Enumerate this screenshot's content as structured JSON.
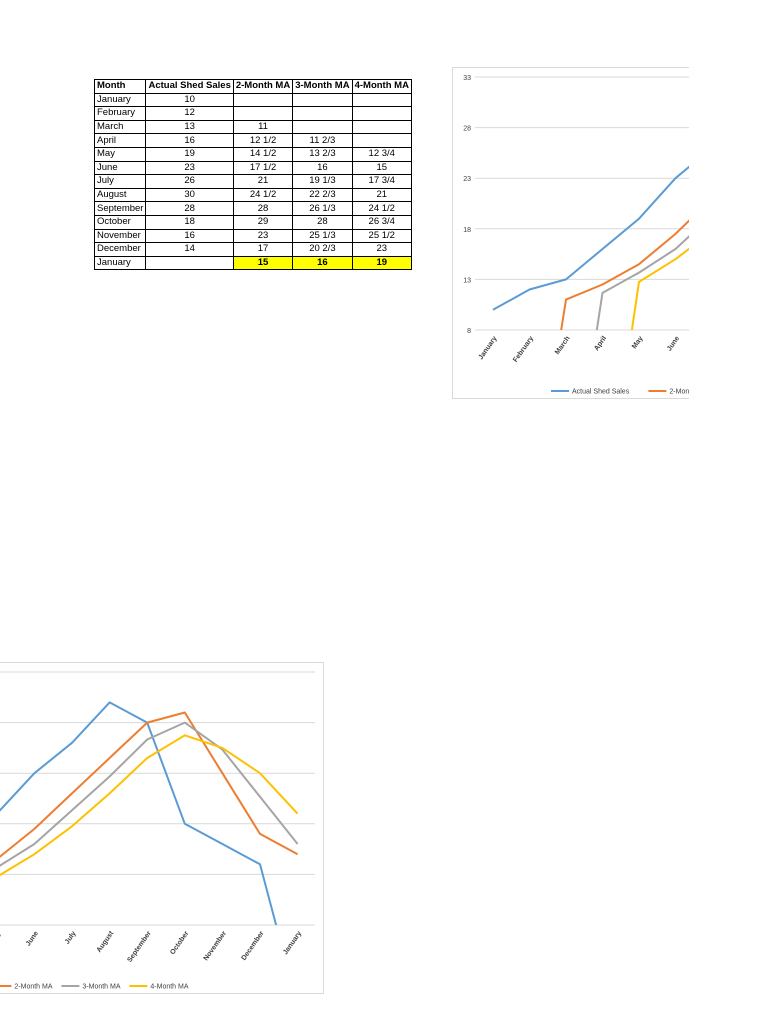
{
  "table": {
    "headers": [
      "Month",
      "Actual Shed Sales",
      "2-Month MA",
      "3-Month MA",
      "4-Month MA"
    ],
    "rows": [
      {
        "month": "January",
        "actual": "10",
        "ma2": "",
        "ma3": "",
        "ma4": ""
      },
      {
        "month": "February",
        "actual": "12",
        "ma2": "",
        "ma3": "",
        "ma4": ""
      },
      {
        "month": "March",
        "actual": "13",
        "ma2": "11",
        "ma3": "",
        "ma4": ""
      },
      {
        "month": "April",
        "actual": "16",
        "ma2": "12 1/2",
        "ma3": "11 2/3",
        "ma4": ""
      },
      {
        "month": "May",
        "actual": "19",
        "ma2": "14 1/2",
        "ma3": "13 2/3",
        "ma4": "12 3/4"
      },
      {
        "month": "June",
        "actual": "23",
        "ma2": "17 1/2",
        "ma3": "16",
        "ma4": "15"
      },
      {
        "month": "July",
        "actual": "26",
        "ma2": "21",
        "ma3": "19 1/3",
        "ma4": "17 3/4"
      },
      {
        "month": "August",
        "actual": "30",
        "ma2": "24 1/2",
        "ma3": "22 2/3",
        "ma4": "21"
      },
      {
        "month": "September",
        "actual": "28",
        "ma2": "28",
        "ma3": "26 1/3",
        "ma4": "24 1/2"
      },
      {
        "month": "October",
        "actual": "18",
        "ma2": "29",
        "ma3": "28",
        "ma4": "26 3/4"
      },
      {
        "month": "November",
        "actual": "16",
        "ma2": "23",
        "ma3": "25 1/3",
        "ma4": "25 1/2"
      },
      {
        "month": "December",
        "actual": "14",
        "ma2": "17",
        "ma3": "20 2/3",
        "ma4": "23"
      }
    ],
    "forecast_row": {
      "month": "January",
      "actual": "",
      "ma2": "15",
      "ma3": "16",
      "ma4": "19"
    },
    "highlight_color": "#ffff00"
  },
  "chart_data": {
    "type": "line",
    "x": [
      "January",
      "February",
      "March",
      "April",
      "May",
      "June",
      "July",
      "August",
      "September",
      "October",
      "November",
      "December",
      "January"
    ],
    "series": [
      {
        "name": "Actual Shed Sales",
        "color": "#5b9bd5",
        "values": [
          10,
          12,
          13,
          16,
          19,
          23,
          26,
          30,
          28,
          18,
          16,
          14,
          null
        ]
      },
      {
        "name": "2-Month MA",
        "color": "#ed7d31",
        "values": [
          null,
          null,
          11,
          12.5,
          14.5,
          17.5,
          21,
          24.5,
          28,
          29,
          23,
          17,
          15
        ]
      },
      {
        "name": "3-Month MA",
        "color": "#a5a5a5",
        "values": [
          null,
          null,
          null,
          11.67,
          13.67,
          16,
          19.33,
          22.67,
          26.33,
          28,
          25.33,
          20.67,
          16
        ]
      },
      {
        "name": "4-Month MA",
        "color": "#ffc000",
        "values": [
          null,
          null,
          null,
          null,
          12.75,
          15,
          17.75,
          21,
          24.5,
          26.75,
          25.5,
          23,
          19
        ]
      }
    ],
    "yticks": [
      8,
      13,
      18,
      23,
      28,
      33
    ],
    "ylim": [
      8,
      33
    ],
    "grid": true,
    "legend": "bottom",
    "title": "",
    "xlabel": "",
    "ylabel": ""
  }
}
